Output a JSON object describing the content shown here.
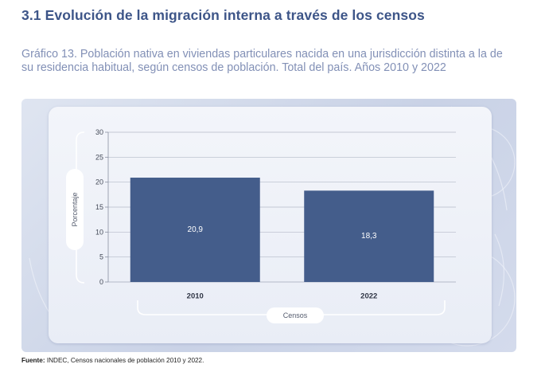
{
  "header": {
    "section_title": "3.1 Evolución de la migración interna a través de los censos",
    "graph_title": "Gráfico 13. Población nativa en viviendas particulares nacida en una jurisdicción distinta a la de su residencia habitual, según censos de población. Total del país. Años 2010 y 2022"
  },
  "chart_data": {
    "type": "bar",
    "categories": [
      "2010",
      "2022"
    ],
    "values": [
      20.9,
      18.3
    ],
    "data_labels": [
      "20,9",
      "18,3"
    ],
    "title": "",
    "xlabel": "Censos",
    "ylabel": "Porcentaje",
    "ylim": [
      0,
      30
    ],
    "yticks": [
      0,
      5,
      10,
      15,
      20,
      25,
      30
    ],
    "grid": true,
    "legend": "none",
    "bar_color": "#445d8b",
    "label_color": "#ffffff"
  },
  "source": {
    "label": "Fuente:",
    "text": " INDEC, Censos nacionales de población 2010 y 2022."
  }
}
